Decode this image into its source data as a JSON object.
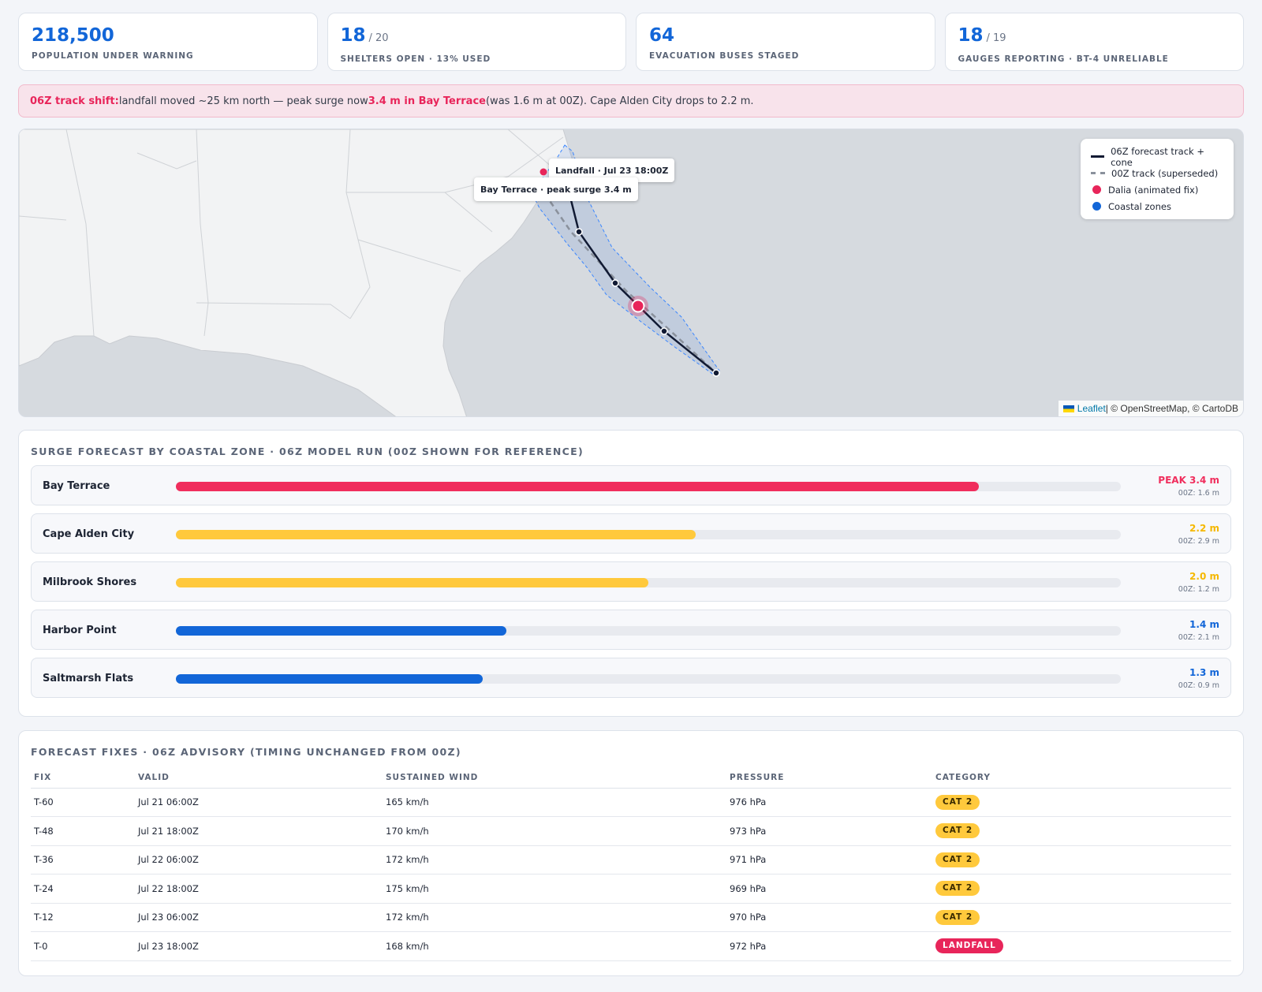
{
  "kpis": [
    {
      "value": "218,500",
      "denominator": "",
      "label": "POPULATION UNDER WARNING"
    },
    {
      "value": "18",
      "denominator": "/ 20",
      "label": "SHELTERS OPEN · 13% USED"
    },
    {
      "value": "64",
      "denominator": "",
      "label": "EVACUATION BUSES STAGED"
    },
    {
      "value": "18",
      "denominator": "/ 19",
      "label": "GAUGES REPORTING · BT-4 UNRELIABLE"
    }
  ],
  "alert": {
    "lead": "06Z track shift:",
    "text1": " landfall moved ~25 km north — peak surge now ",
    "highlight": "3.4 m in Bay Terrace",
    "text2": " (was 1.6 m at 00Z). Cape Alden City drops to 2.2 m."
  },
  "map": {
    "legend": [
      {
        "kind": "line",
        "label": "06Z forecast track + cone"
      },
      {
        "kind": "dash",
        "label": "00Z track (superseded)"
      },
      {
        "kind": "dot-red",
        "label": "Dalia (animated fix)"
      },
      {
        "kind": "dot-blue",
        "label": "Coastal zones"
      }
    ],
    "tooltip_landfall": "Landfall · Jul 23 18:00Z",
    "tooltip_zone": "Bay Terrace · peak surge 3.4 m",
    "attribution_link": "Leaflet",
    "attribution_text": " | © OpenStreetMap, © CartoDB",
    "colors": {
      "track": "#111a33",
      "old_track": "#8a919c",
      "storm": "#e8255a",
      "zones": "#1266d8"
    }
  },
  "surge": {
    "title": "SURGE FORECAST BY COASTAL ZONE · 06Z MODEL RUN (00Z SHOWN FOR REFERENCE)",
    "max_scale_m": 4.0,
    "zones": [
      {
        "name": "Bay Terrace",
        "value_m": 3.4,
        "value_label": "PEAK 3.4 m",
        "prev_label": "00Z: 1.6 m",
        "color": "#f02e5d"
      },
      {
        "name": "Cape Alden City",
        "value_m": 2.2,
        "value_label": "2.2 m",
        "prev_label": "00Z: 2.9 m",
        "color": "#ffc93c"
      },
      {
        "name": "Milbrook Shores",
        "value_m": 2.0,
        "value_label": "2.0 m",
        "prev_label": "00Z: 1.2 m",
        "color": "#ffc93c"
      },
      {
        "name": "Harbor Point",
        "value_m": 1.4,
        "value_label": "1.4 m",
        "prev_label": "00Z: 2.1 m",
        "color": "#1266d8"
      },
      {
        "name": "Saltmarsh Flats",
        "value_m": 1.3,
        "value_label": "1.3 m",
        "prev_label": "00Z: 0.9 m",
        "color": "#1266d8"
      }
    ]
  },
  "fixes": {
    "title": "FORECAST FIXES · 06Z ADVISORY (TIMING UNCHANGED FROM 00Z)",
    "columns": [
      "FIX",
      "VALID",
      "SUSTAINED WIND",
      "PRESSURE",
      "CATEGORY"
    ],
    "rows": [
      {
        "fix": "T-60",
        "valid": "Jul 21 06:00Z",
        "wind": "165 km/h",
        "pressure": "976 hPa",
        "category": "CAT 2",
        "kind": "cat"
      },
      {
        "fix": "T-48",
        "valid": "Jul 21 18:00Z",
        "wind": "170 km/h",
        "pressure": "973 hPa",
        "category": "CAT 2",
        "kind": "cat"
      },
      {
        "fix": "T-36",
        "valid": "Jul 22 06:00Z",
        "wind": "172 km/h",
        "pressure": "971 hPa",
        "category": "CAT 2",
        "kind": "cat"
      },
      {
        "fix": "T-24",
        "valid": "Jul 22 18:00Z",
        "wind": "175 km/h",
        "pressure": "969 hPa",
        "category": "CAT 2",
        "kind": "cat"
      },
      {
        "fix": "T-12",
        "valid": "Jul 23 06:00Z",
        "wind": "172 km/h",
        "pressure": "970 hPa",
        "category": "CAT 2",
        "kind": "cat"
      },
      {
        "fix": "T-0",
        "valid": "Jul 23 18:00Z",
        "wind": "168 km/h",
        "pressure": "972 hPa",
        "category": "LANDFALL",
        "kind": "land"
      }
    ]
  }
}
